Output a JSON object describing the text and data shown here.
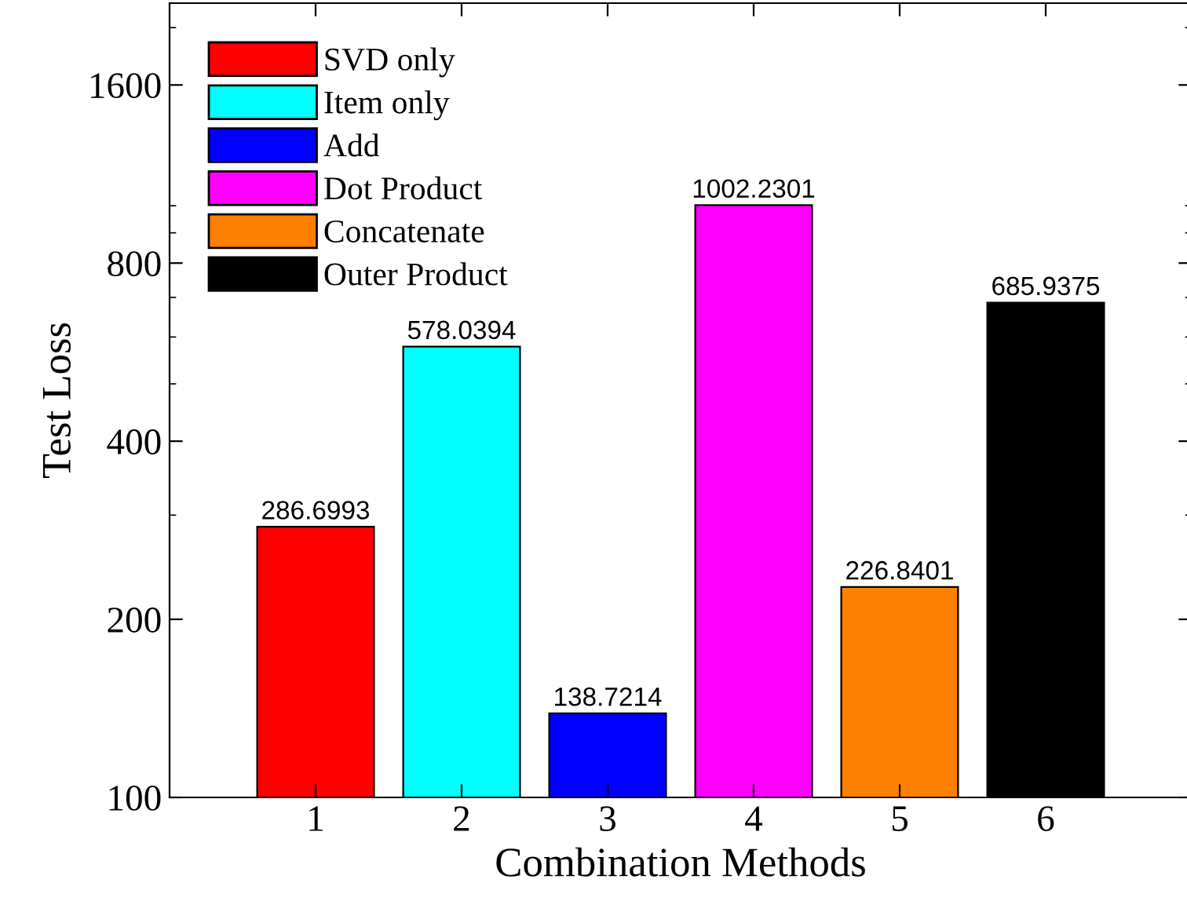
{
  "chart_data": {
    "type": "bar",
    "xlabel": "Combination Methods",
    "ylabel": "Test Loss",
    "log": "y",
    "xlim": [
      0,
      7
    ],
    "xticks": [
      1,
      2,
      3,
      4,
      5,
      6
    ],
    "ylim": [
      100,
      2200
    ],
    "yticks": [
      100,
      200,
      400,
      800,
      1600
    ],
    "series": [
      {
        "name": "SVD only",
        "color": "#ff0000",
        "x": [
          1
        ],
        "values": [
          286.6993
        ]
      },
      {
        "name": "Item only",
        "color": "#00ffff",
        "x": [
          2
        ],
        "values": [
          578.0394
        ]
      },
      {
        "name": "Add",
        "color": "#0000ff",
        "x": [
          3
        ],
        "values": [
          138.7214
        ]
      },
      {
        "name": "Dot Product",
        "color": "#ff00ff",
        "x": [
          4
        ],
        "values": [
          1002.2301
        ]
      },
      {
        "name": "Concatenate",
        "color": "#ff8000",
        "x": [
          5
        ],
        "values": [
          226.8401
        ]
      },
      {
        "name": "Outer Product",
        "color": "#000000",
        "x": [
          6
        ],
        "values": [
          685.9375
        ]
      }
    ],
    "data_labels": true,
    "legend": "top left",
    "grid": false
  }
}
